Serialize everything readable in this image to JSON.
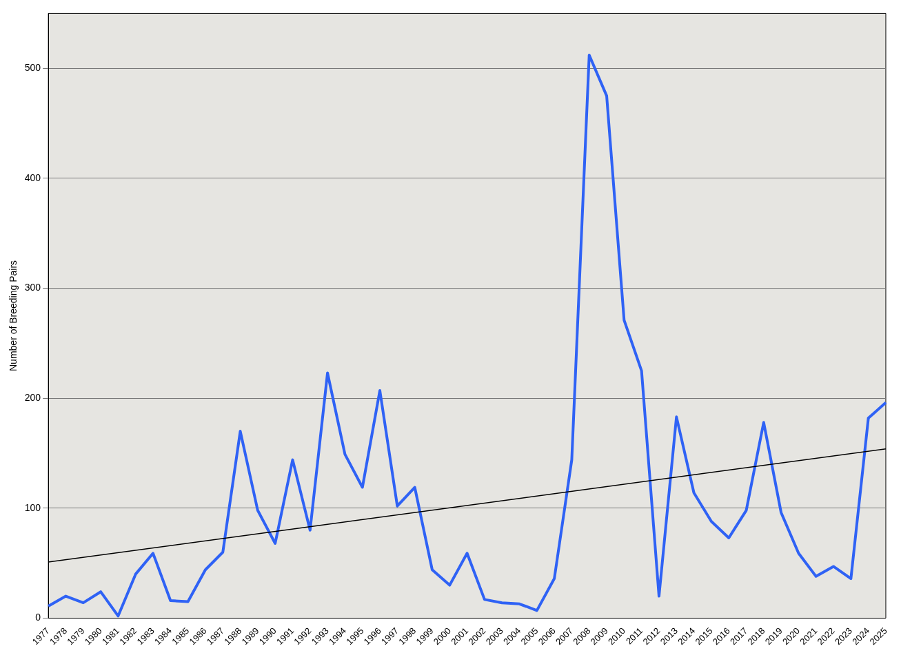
{
  "chart_data": {
    "type": "line",
    "ylabel": "Number of Breeding Pairs",
    "categories": [
      "1977",
      "1978",
      "1979",
      "1980",
      "1981",
      "1982",
      "1983",
      "1984",
      "1985",
      "1986",
      "1987",
      "1988",
      "1989",
      "1990",
      "1991",
      "1992",
      "1993",
      "1994",
      "1995",
      "1996",
      "1997",
      "1998",
      "1999",
      "2000",
      "2001",
      "2002",
      "2003",
      "2004",
      "2005",
      "2006",
      "2007",
      "2008",
      "2009",
      "2010",
      "2011",
      "2012",
      "2013",
      "2014",
      "2015",
      "2016",
      "2017",
      "2018",
      "2019",
      "2020",
      "2021",
      "2022",
      "2023",
      "2024",
      "2025"
    ],
    "series": [
      {
        "color": "#2f62f5",
        "values": [
          11,
          20,
          14,
          24,
          2,
          40,
          59,
          16,
          15,
          44,
          60,
          170,
          98,
          68,
          144,
          80,
          223,
          149,
          119,
          207,
          102,
          119,
          44,
          30,
          59,
          17,
          14,
          13,
          7,
          36,
          144,
          512,
          475,
          271,
          225,
          20,
          183,
          114,
          88,
          73,
          98,
          178,
          96,
          59,
          38,
          47,
          36,
          182,
          196
        ]
      },
      {
        "type": "line",
        "color": "#000000",
        "values": [
          51,
          null,
          null,
          null,
          null,
          null,
          null,
          null,
          null,
          null,
          null,
          null,
          null,
          null,
          null,
          null,
          null,
          null,
          null,
          null,
          null,
          null,
          null,
          null,
          null,
          null,
          null,
          null,
          null,
          null,
          null,
          null,
          null,
          null,
          null,
          null,
          null,
          null,
          null,
          null,
          null,
          null,
          null,
          null,
          null,
          null,
          null,
          null,
          154
        ]
      }
    ],
    "ylim": [
      0,
      550
    ],
    "yticks": [
      0,
      100,
      200,
      300,
      400,
      500
    ],
    "grid": "y",
    "marker": "none",
    "line_style": "solid"
  }
}
